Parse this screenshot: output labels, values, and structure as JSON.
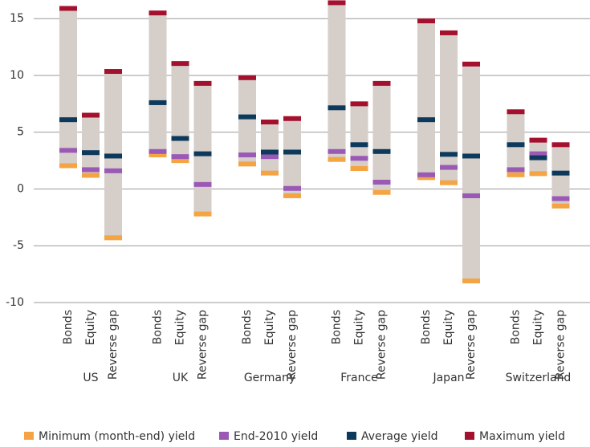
{
  "chart_data": {
    "type": "range-marker",
    "groups": [
      "US",
      "UK",
      "Germany",
      "France",
      "Japan",
      "Switzerland"
    ],
    "categories": [
      "Bonds",
      "Equity",
      "Reverse gap",
      "Bonds",
      "Equity",
      "Reverse gap",
      "Bonds",
      "Equity",
      "Reverse gap",
      "Bonds",
      "Equity",
      "Reverse gap",
      "Bonds",
      "Equity",
      "Reverse gap",
      "Bonds",
      "Equity",
      "Reverse gap"
    ],
    "range_color": "#d5cec9",
    "series": [
      {
        "name": "Minimum (month-end) yield",
        "color": "#f4a443",
        "values": [
          2.05,
          1.2,
          -4.3,
          3.0,
          2.5,
          -2.2,
          2.2,
          1.4,
          -0.6,
          2.6,
          1.8,
          -0.3,
          1.0,
          0.55,
          -8.1,
          1.25,
          1.35,
          -1.5
        ]
      },
      {
        "name": "End-2010 yield",
        "color": "#9b59b6",
        "values": [
          3.4,
          1.7,
          1.6,
          3.3,
          2.85,
          0.4,
          3.0,
          2.85,
          0.05,
          3.3,
          2.7,
          0.6,
          1.25,
          1.9,
          -0.6,
          1.7,
          3.1,
          -0.85
        ]
      },
      {
        "name": "Average yield",
        "color": "#0d3a5c",
        "values": [
          6.1,
          3.2,
          2.9,
          7.6,
          4.45,
          3.1,
          6.35,
          3.25,
          3.25,
          7.15,
          3.9,
          3.3,
          6.1,
          3.05,
          2.9,
          3.9,
          2.75,
          1.4
        ]
      },
      {
        "name": "Maximum yield",
        "color": "#a3112e",
        "values": [
          15.9,
          6.5,
          10.35,
          15.5,
          11.05,
          9.3,
          9.8,
          5.9,
          6.2,
          16.4,
          7.5,
          9.3,
          14.8,
          13.75,
          11.0,
          6.8,
          4.3,
          3.9
        ]
      }
    ],
    "ylim": [
      -10,
      16.5
    ],
    "yticks": [
      -10,
      -5,
      0,
      5,
      10,
      15
    ],
    "grid": true,
    "legend": "bottom"
  }
}
